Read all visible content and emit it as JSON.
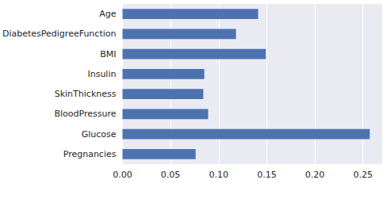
{
  "chart_data": {
    "type": "bar",
    "orientation": "horizontal",
    "categories": [
      "Pregnancies",
      "Glucose",
      "BloodPressure",
      "SkinThickness",
      "Insulin",
      "BMI",
      "DiabetesPedigreeFunction",
      "Age"
    ],
    "values": [
      0.076,
      0.257,
      0.089,
      0.084,
      0.085,
      0.149,
      0.118,
      0.141
    ],
    "color": "#4c72b0",
    "xlim": [
      0,
      0.27
    ],
    "xticks": [
      {
        "value": 0,
        "label": "0.00"
      },
      {
        "value": 0.05,
        "label": "0.05"
      },
      {
        "value": 0.1,
        "label": "0.10"
      },
      {
        "value": 0.15,
        "label": "0.15"
      },
      {
        "value": 0.2,
        "label": "0.20"
      },
      {
        "value": 0.25,
        "label": "0.25"
      }
    ],
    "grid": true
  }
}
